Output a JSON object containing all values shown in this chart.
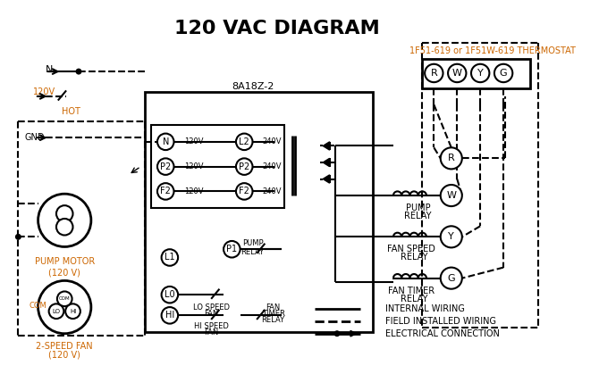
{
  "title": "120 VAC DIAGRAM",
  "title_color": "#000000",
  "title_fontsize": 16,
  "background_color": "#ffffff",
  "line_color": "#000000",
  "dashed_color": "#000000",
  "orange_color": "#cc6600",
  "thermostat_label": "1F51-619 or 1F51W-619 THERMOSTAT",
  "control_box_label": "8A18Z-2",
  "pump_motor_label": "PUMP MOTOR\n(120 V)",
  "fan_label": "2-SPEED FAN\n(120 V)",
  "legend_items": [
    {
      "label": "INTERNAL WIRING",
      "style": "solid"
    },
    {
      "label": "FIELD INSTALLED WIRING",
      "style": "dashed"
    },
    {
      "label": "ELECTRICAL CONNECTION",
      "style": "dot"
    }
  ],
  "terminals_N_label": "N",
  "terminals_120V": "120V",
  "hot_label": "HOT",
  "gnd_label": "GND",
  "thermostat_terminals": [
    "R",
    "W",
    "Y",
    "G"
  ]
}
